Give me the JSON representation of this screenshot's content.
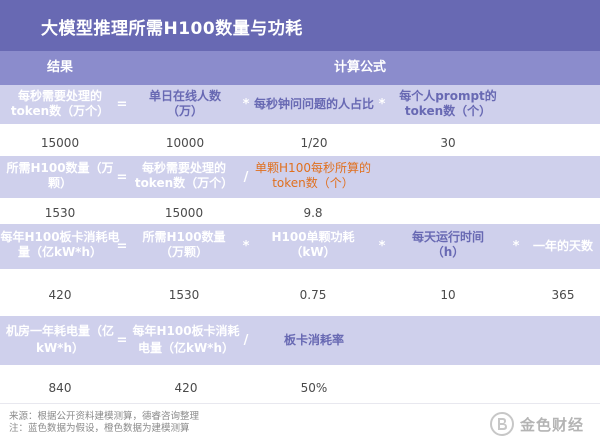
{
  "title": "大模型推理所需H100数量与功耗",
  "columns": {
    "result": "结果",
    "formula": "计算公式"
  },
  "row1": {
    "result": "每秒需要处理的token数（万个）",
    "eq": "=",
    "t1": "单日在线人数（万）",
    "op1": "*",
    "t2": "每秒钟问问题的人占比",
    "op2": "*",
    "t3": "每个人prompt的token数（个）",
    "values": [
      "15000",
      "10000",
      "1/20",
      "30"
    ]
  },
  "row2": {
    "result": "所需H100数量（万颗）",
    "eq": "=",
    "t1": "每秒需要处理的token数（万个）",
    "op1": "/",
    "t2": "单颗H100每秒所算的token数（个）",
    "values": [
      "1530",
      "15000",
      "9.8"
    ]
  },
  "row3": {
    "result": "每年H100板卡消耗电量（亿kW*h）",
    "eq": "=",
    "t1": "所需H100数量（万颗）",
    "op1": "*",
    "t2": "H100单颗功耗（kW）",
    "op2": "*",
    "t3": "每天运行时间（h）",
    "op3": "*",
    "t4": "一年的天数",
    "values": [
      "420",
      "1530",
      "0.75",
      "10",
      "365"
    ]
  },
  "row4": {
    "result": "机房一年耗电量（亿kW*h）",
    "eq": "=",
    "t1": "每年H100板卡消耗电量（亿kW*h）",
    "op1": "/",
    "t2": "板卡消耗率",
    "values": [
      "840",
      "420",
      "50%"
    ]
  },
  "footer": {
    "source": "来源：根据公开资料建模测算，德睿咨询整理",
    "note": "注：蓝色数据为假设，橙色数据为建模测算"
  },
  "logo": {
    "text": "金色财经",
    "icon": "bitcoin-coin-icon"
  },
  "colors": {
    "header": "#6869b3",
    "column_header": "#8b8ccc",
    "band": "#cfd0ec",
    "assumption_blue": "#6869b3",
    "computed_orange": "#e0701f"
  }
}
